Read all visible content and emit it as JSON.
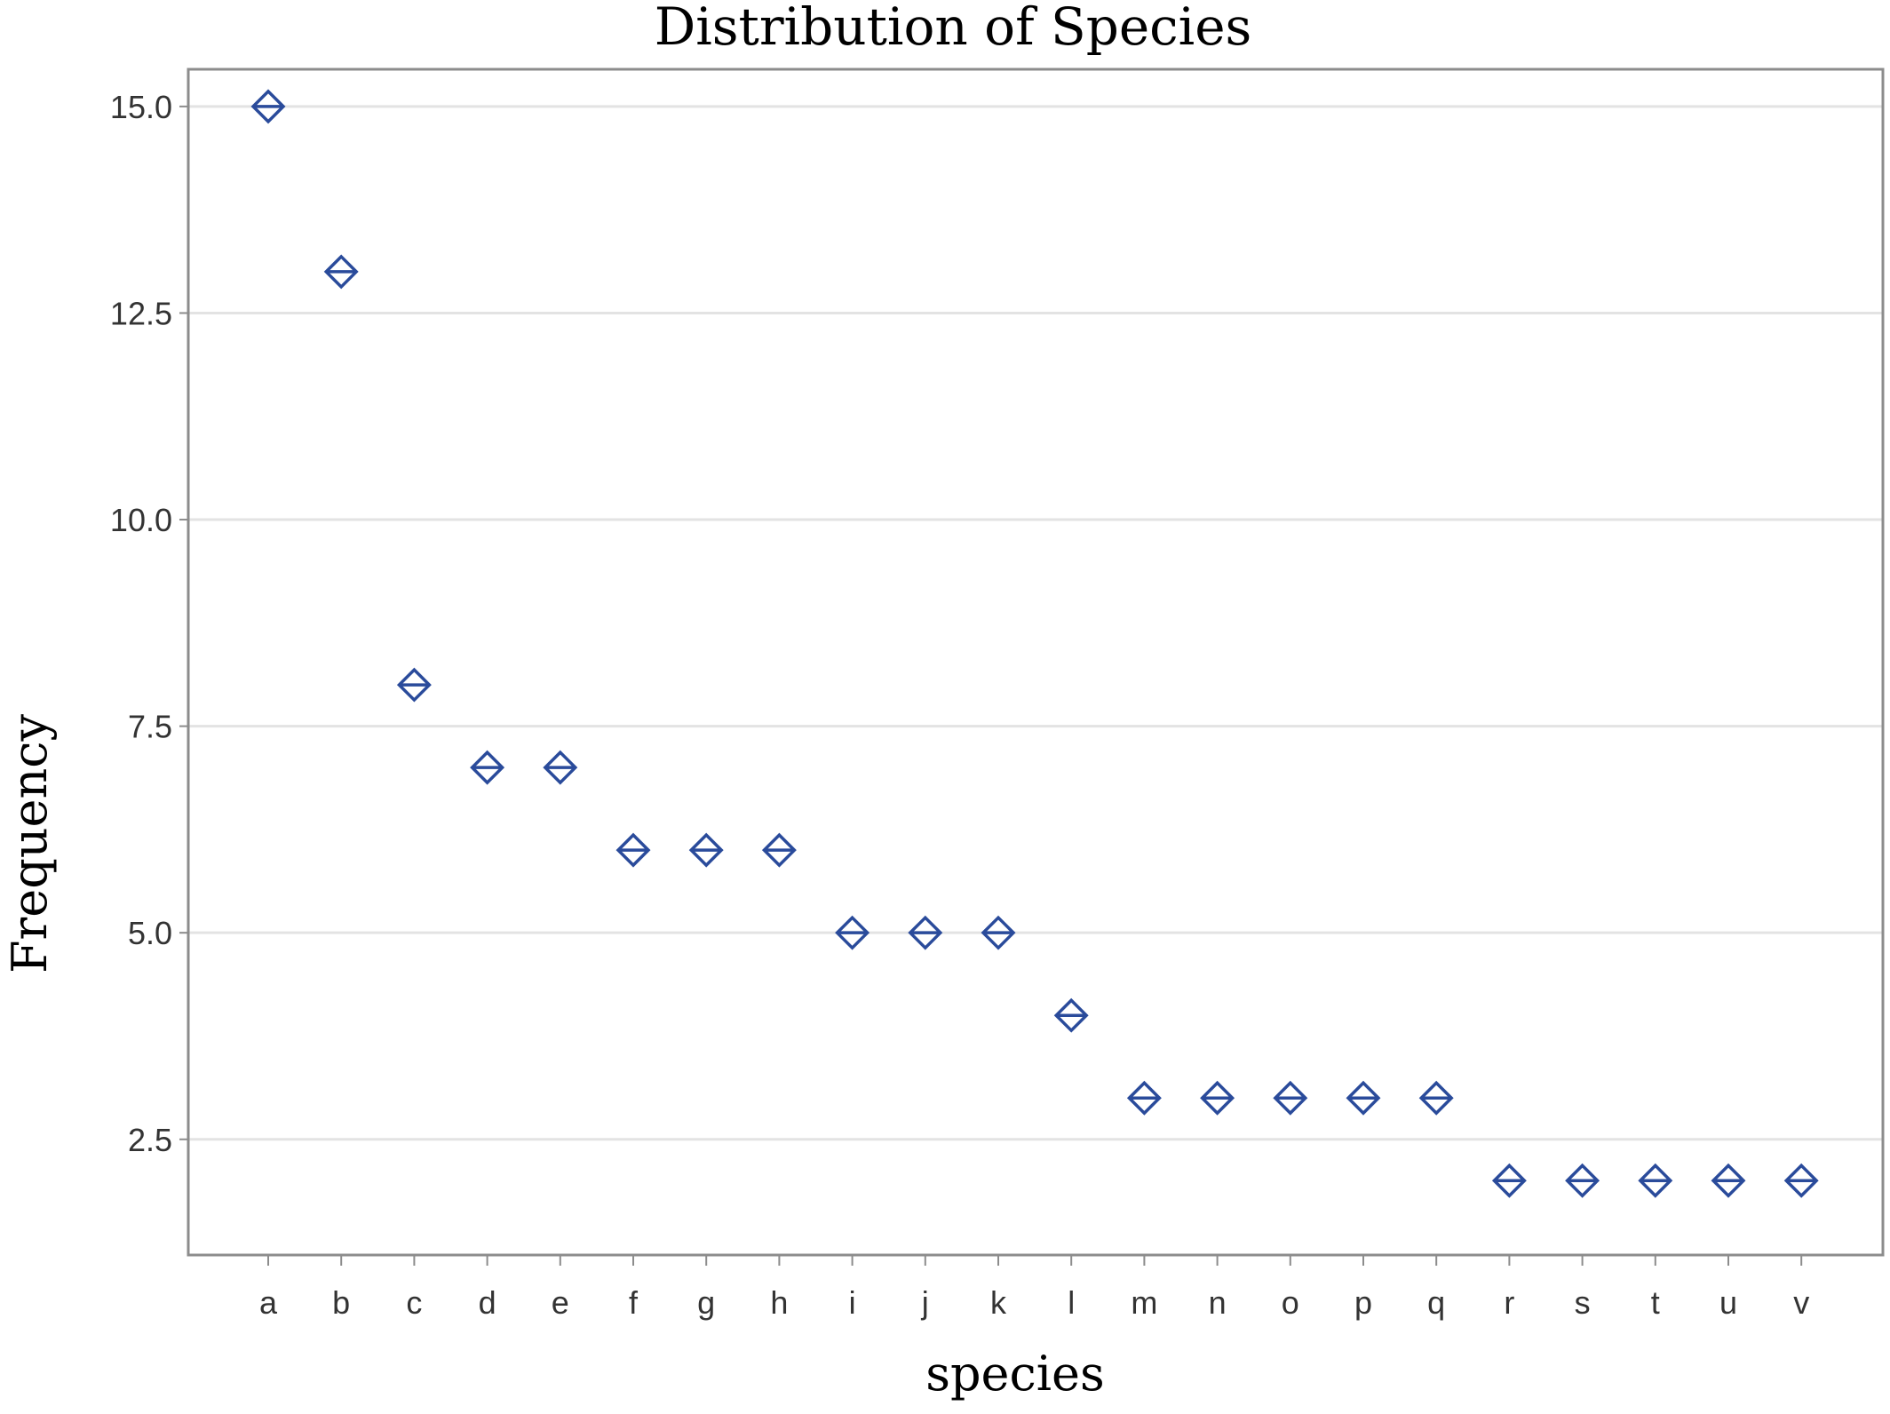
{
  "chart_data": {
    "type": "scatter",
    "title": "Distribution of Species",
    "xlabel": "species",
    "ylabel": "Frequency",
    "categories": [
      "a",
      "b",
      "c",
      "d",
      "e",
      "f",
      "g",
      "h",
      "i",
      "j",
      "k",
      "l",
      "m",
      "n",
      "o",
      "p",
      "q",
      "r",
      "s",
      "t",
      "u",
      "v"
    ],
    "values": [
      15,
      13,
      8,
      7,
      7,
      6,
      6,
      6,
      5,
      5,
      5,
      4,
      3,
      3,
      3,
      3,
      3,
      2,
      2,
      2,
      2,
      2
    ],
    "yticks": [
      "2.5",
      "5.0",
      "7.5",
      "10.0",
      "12.5",
      "15.0"
    ],
    "ylim": [
      1.1,
      15.45
    ],
    "grid": true,
    "marker": "diamond-with-horizontal-line",
    "colors": {
      "marker": "#2a4b9b",
      "grid": "#e3e3e3",
      "frame": "#8c8c8c"
    }
  }
}
